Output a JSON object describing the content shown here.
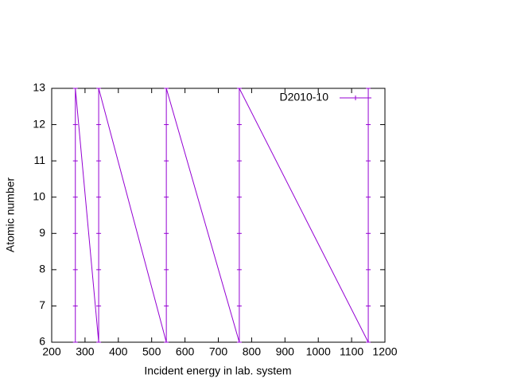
{
  "chart_data": {
    "type": "line",
    "xlabel": "Incident energy in lab. system",
    "ylabel": "Atomic number",
    "x": [
      271,
      271,
      271,
      271,
      271,
      271,
      271,
      271,
      341,
      341,
      341,
      341,
      341,
      341,
      341,
      341,
      544,
      544,
      544,
      544,
      544,
      544,
      544,
      544,
      763,
      763,
      763,
      763,
      763,
      763,
      763,
      763,
      1150,
      1150,
      1150,
      1150,
      1150,
      1150,
      1150,
      1150
    ],
    "series": [
      {
        "name": "D2010-10",
        "color": "#9400d3",
        "values": [
          6,
          7,
          8,
          9,
          10,
          11,
          12,
          13,
          6,
          7,
          8,
          9,
          10,
          11,
          12,
          13,
          6,
          7,
          8,
          9,
          10,
          11,
          12,
          13,
          6,
          7,
          8,
          9,
          10,
          11,
          12,
          13,
          6,
          7,
          8,
          9,
          10,
          11,
          12,
          13
        ]
      }
    ],
    "xlim": [
      200,
      1200
    ],
    "xticks": [
      200,
      300,
      400,
      500,
      600,
      700,
      800,
      900,
      1000,
      1100,
      1200
    ],
    "ylim": [
      6,
      13
    ],
    "yticks": [
      6,
      7,
      8,
      9,
      10,
      11,
      12,
      13
    ],
    "legend": "top-right"
  }
}
